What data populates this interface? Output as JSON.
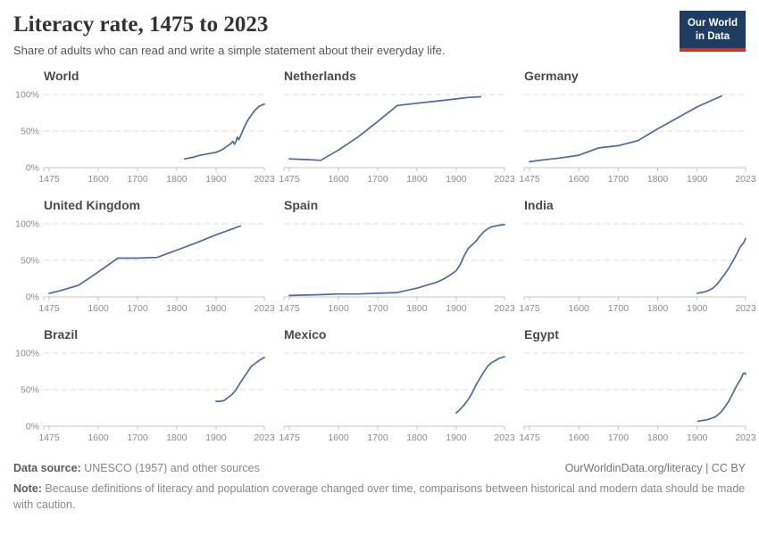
{
  "header": {
    "title": "Literacy rate, 1475 to 2023",
    "subtitle": "Share of adults who can read and write a simple statement about their everyday life.",
    "logo_line1": "Our World",
    "logo_line2": "in Data"
  },
  "footer": {
    "source_label": "Data source:",
    "source_text": " UNESCO (1957) and other sources",
    "attribution": "OurWorldinData.org/literacy | CC BY",
    "note_label": "Note:",
    "note_text": " Because definitions of literacy and population coverage changed over time, comparisons between historical and modern data should be made with caution."
  },
  "colors": {
    "line": "#4C6A9C",
    "grid": "#DCDCDC",
    "axis": "#C4C4C4",
    "tick_text": "#8B8B8B",
    "logo_navy": "#1D3D63",
    "logo_red": "#C93733"
  },
  "chart_data": {
    "type": "line",
    "title": "Literacy rate, 1475 to 2023",
    "xlabel": "",
    "ylabel": "",
    "xlim": [
      1475,
      2023
    ],
    "ylim": [
      0,
      100
    ],
    "x_ticks": [
      1475,
      1600,
      1700,
      1800,
      1900,
      2023
    ],
    "y_ticks": [
      0,
      50,
      100
    ],
    "y_tick_suffix": "%",
    "grid": true,
    "legend": "none",
    "facets": [
      {
        "name": "World",
        "points": [
          [
            1820,
            12
          ],
          [
            1840,
            14
          ],
          [
            1860,
            17
          ],
          [
            1880,
            19
          ],
          [
            1900,
            21
          ],
          [
            1910,
            23
          ],
          [
            1920,
            26
          ],
          [
            1930,
            30
          ],
          [
            1938,
            33
          ],
          [
            1943,
            36
          ],
          [
            1947,
            32
          ],
          [
            1951,
            36
          ],
          [
            1954,
            42
          ],
          [
            1958,
            38
          ],
          [
            1963,
            44
          ],
          [
            1970,
            53
          ],
          [
            1980,
            64
          ],
          [
            1990,
            72
          ],
          [
            2000,
            79
          ],
          [
            2010,
            84
          ],
          [
            2023,
            87
          ]
        ]
      },
      {
        "name": "Netherlands",
        "points": [
          [
            1475,
            12
          ],
          [
            1520,
            11
          ],
          [
            1555,
            10
          ],
          [
            1600,
            24
          ],
          [
            1650,
            42
          ],
          [
            1700,
            63
          ],
          [
            1750,
            85
          ],
          [
            1800,
            88
          ],
          [
            1850,
            91
          ],
          [
            1900,
            94
          ],
          [
            1930,
            96
          ],
          [
            1962,
            97
          ]
        ]
      },
      {
        "name": "Germany",
        "points": [
          [
            1475,
            8
          ],
          [
            1500,
            10
          ],
          [
            1550,
            13
          ],
          [
            1600,
            17
          ],
          [
            1650,
            27
          ],
          [
            1700,
            30
          ],
          [
            1750,
            37
          ],
          [
            1800,
            53
          ],
          [
            1850,
            68
          ],
          [
            1900,
            83
          ],
          [
            1962,
            98
          ]
        ]
      },
      {
        "name": "United Kingdom",
        "points": [
          [
            1475,
            5
          ],
          [
            1500,
            8
          ],
          [
            1550,
            16
          ],
          [
            1600,
            34
          ],
          [
            1650,
            53
          ],
          [
            1700,
            53
          ],
          [
            1750,
            54
          ],
          [
            1800,
            64
          ],
          [
            1850,
            74
          ],
          [
            1900,
            85
          ],
          [
            1962,
            97
          ]
        ]
      },
      {
        "name": "Spain",
        "points": [
          [
            1475,
            2
          ],
          [
            1550,
            3
          ],
          [
            1600,
            4
          ],
          [
            1650,
            4
          ],
          [
            1700,
            5
          ],
          [
            1750,
            6
          ],
          [
            1800,
            12
          ],
          [
            1850,
            20
          ],
          [
            1870,
            25
          ],
          [
            1890,
            32
          ],
          [
            1900,
            36
          ],
          [
            1910,
            44
          ],
          [
            1920,
            56
          ],
          [
            1930,
            66
          ],
          [
            1940,
            71
          ],
          [
            1950,
            76
          ],
          [
            1960,
            83
          ],
          [
            1970,
            89
          ],
          [
            1980,
            93
          ],
          [
            1990,
            96
          ],
          [
            2000,
            97
          ],
          [
            2010,
            98
          ],
          [
            2023,
            99
          ]
        ]
      },
      {
        "name": "India",
        "points": [
          [
            1900,
            5
          ],
          [
            1910,
            6
          ],
          [
            1920,
            7
          ],
          [
            1930,
            9
          ],
          [
            1940,
            12
          ],
          [
            1950,
            17
          ],
          [
            1960,
            24
          ],
          [
            1970,
            31
          ],
          [
            1980,
            39
          ],
          [
            1990,
            48
          ],
          [
            2000,
            58
          ],
          [
            2010,
            69
          ],
          [
            2018,
            74
          ],
          [
            2023,
            80
          ]
        ]
      },
      {
        "name": "Brazil",
        "points": [
          [
            1900,
            34
          ],
          [
            1910,
            34
          ],
          [
            1920,
            35
          ],
          [
            1930,
            39
          ],
          [
            1940,
            43
          ],
          [
            1950,
            49
          ],
          [
            1960,
            58
          ],
          [
            1970,
            66
          ],
          [
            1980,
            74
          ],
          [
            1990,
            82
          ],
          [
            2000,
            86
          ],
          [
            2010,
            90
          ],
          [
            2023,
            94
          ]
        ]
      },
      {
        "name": "Mexico",
        "points": [
          [
            1900,
            18
          ],
          [
            1910,
            23
          ],
          [
            1920,
            29
          ],
          [
            1930,
            36
          ],
          [
            1940,
            45
          ],
          [
            1950,
            56
          ],
          [
            1960,
            65
          ],
          [
            1970,
            74
          ],
          [
            1980,
            82
          ],
          [
            1990,
            87
          ],
          [
            2000,
            90
          ],
          [
            2010,
            93
          ],
          [
            2023,
            95
          ]
        ]
      },
      {
        "name": "Egypt",
        "points": [
          [
            1902,
            7
          ],
          [
            1917,
            8
          ],
          [
            1927,
            9
          ],
          [
            1937,
            11
          ],
          [
            1947,
            13
          ],
          [
            1960,
            19
          ],
          [
            1970,
            26
          ],
          [
            1980,
            34
          ],
          [
            1990,
            44
          ],
          [
            2000,
            55
          ],
          [
            2010,
            64
          ],
          [
            2017,
            72
          ],
          [
            2021,
            73
          ],
          [
            2023,
            71
          ]
        ]
      }
    ]
  }
}
